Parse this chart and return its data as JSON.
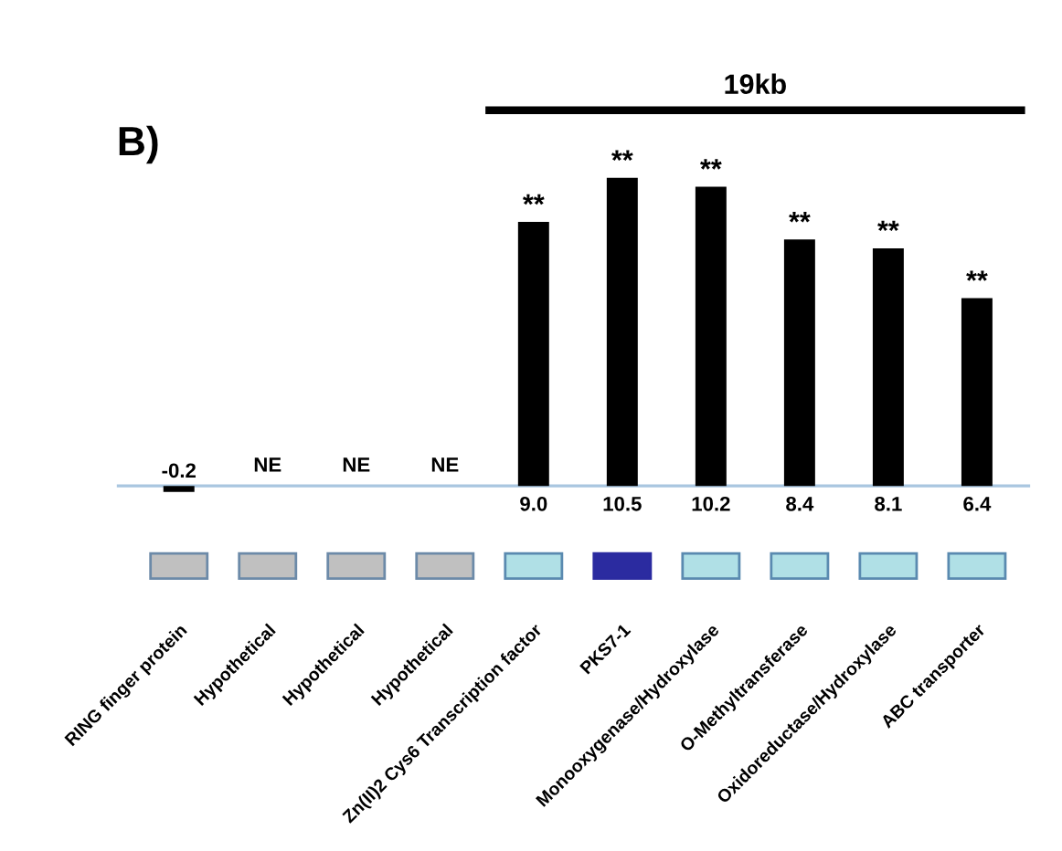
{
  "chart_data": {
    "type": "bar",
    "title": "B)",
    "categories": [
      "RING finger protein",
      "Hypothetical",
      "Hypothetical",
      "Hypothetical",
      "Zn(II)2 Cys6 Transcription factor",
      "PKS7-1",
      "Monooxygenase/Hydroxylase",
      "O-Methyltransferase",
      "Oxidoreductase/Hydroxylase",
      "ABC transporter"
    ],
    "values": [
      -0.2,
      null,
      null,
      null,
      9.0,
      10.5,
      10.2,
      8.4,
      8.1,
      6.4
    ],
    "value_labels": [
      "-0.2",
      "NE",
      "NE",
      "NE",
      "9.0",
      "10.5",
      "10.2",
      "8.4",
      "8.1",
      "6.4"
    ],
    "color": "#000000",
    "annotations": [
      {
        "text": "**",
        "x": "Zn(II)2 Cys6 Transcription factor",
        "y": 9.0
      },
      {
        "text": "**",
        "x": "PKS7-1",
        "y": 10.5
      },
      {
        "text": "**",
        "x": "Monooxygenase/Hydroxylase",
        "y": 10.2
      },
      {
        "text": "**",
        "x": "O-Methyltransferase",
        "y": 8.4
      },
      {
        "text": "**",
        "x": "Oxidoreductase/Hydroxylase",
        "y": 8.1
      },
      {
        "text": "**",
        "x": "ABC transporter",
        "y": 6.4
      },
      "19kb"
    ],
    "ref_lines": [
      {
        "axis": "y",
        "value": 0,
        "color": "#a9c6e0"
      }
    ],
    "grid": false
  }
}
